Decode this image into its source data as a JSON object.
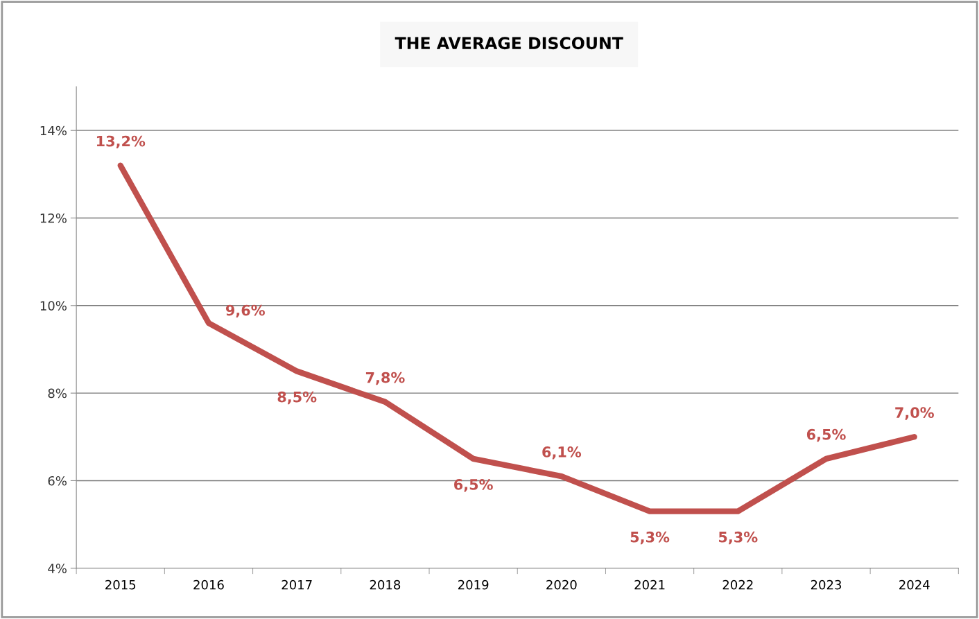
{
  "chart_data": {
    "type": "line",
    "title": "THE AVERAGE DISCOUNT",
    "categories": [
      "2015",
      "2016",
      "2017",
      "2018",
      "2019",
      "2020",
      "2021",
      "2022",
      "2023",
      "2024"
    ],
    "series": [
      {
        "color": "#c0504d",
        "values": [
          13.2,
          9.6,
          8.5,
          7.8,
          6.5,
          6.1,
          5.3,
          5.3,
          6.5,
          7.0
        ],
        "value_labels": [
          "13,2%",
          "9,6%",
          "8,5%",
          "7,8%",
          "6,5%",
          "6,1%",
          "5,3%",
          "5,3%",
          "6,5%",
          "7,0%"
        ]
      }
    ],
    "ylim": [
      4,
      15
    ],
    "yticks": [
      {
        "value": 4,
        "label": "4%"
      },
      {
        "value": 6,
        "label": "6%"
      },
      {
        "value": 8,
        "label": "8%"
      },
      {
        "value": 10,
        "label": "10%"
      },
      {
        "value": 12,
        "label": "12%"
      },
      {
        "value": 14,
        "label": "14%"
      }
    ],
    "grid": "y",
    "legend": false,
    "marker": "none",
    "line_style": "solid"
  }
}
